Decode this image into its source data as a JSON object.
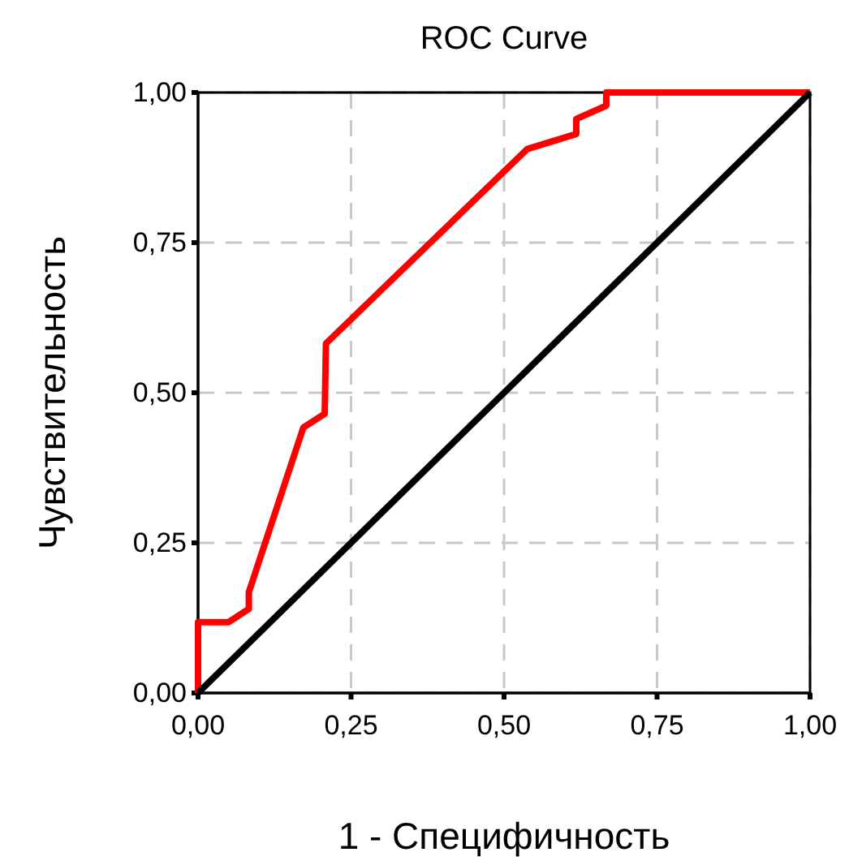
{
  "chart_data": {
    "type": "line",
    "title": "ROC Curve",
    "xlabel": "1 - Специфичность",
    "ylabel": "Чувствительность",
    "xlim": [
      0,
      1
    ],
    "ylim": [
      0,
      1
    ],
    "xticks": [
      {
        "value": 0,
        "label": "0,00"
      },
      {
        "value": 0.25,
        "label": "0,25"
      },
      {
        "value": 0.5,
        "label": "0,50"
      },
      {
        "value": 0.75,
        "label": "0,75"
      },
      {
        "value": 1,
        "label": "1,00"
      }
    ],
    "yticks": [
      {
        "value": 0,
        "label": "0,00"
      },
      {
        "value": 0.25,
        "label": "0,25"
      },
      {
        "value": 0.5,
        "label": "0,50"
      },
      {
        "value": 0.75,
        "label": "0,75"
      },
      {
        "value": 1,
        "label": "1,00"
      }
    ],
    "grid": true,
    "line_style": "solid",
    "series": [
      {
        "color": "#ff0000",
        "x": [
          0,
          0,
          0.05,
          0.083,
          0.083,
          0.172,
          0.207,
          0.209,
          0.538,
          0.618,
          0.618,
          0.667,
          0.667,
          1
        ],
        "values": [
          0,
          0.118,
          0.118,
          0.14,
          0.168,
          0.442,
          0.465,
          0.582,
          0.906,
          0.931,
          0.956,
          0.978,
          1,
          1
        ]
      },
      {
        "color": "#000000",
        "x": [
          0,
          1
        ],
        "values": [
          0,
          1
        ]
      }
    ]
  }
}
